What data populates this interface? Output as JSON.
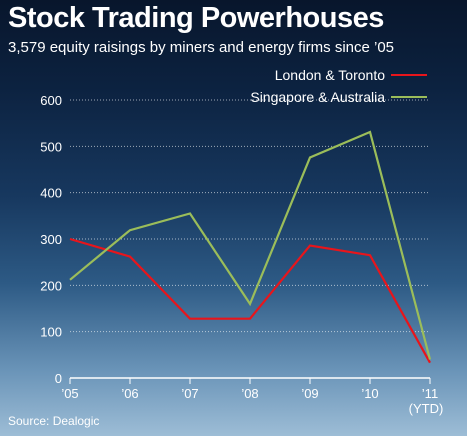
{
  "title": "Stock Trading Powerhouses",
  "subtitle": "3,579 equity raisings by miners and energy firms since ’05",
  "source": "Source: Dealogic",
  "colors": {
    "london_toronto": "#e8151b",
    "singapore_australia": "#9bbd5a"
  },
  "chart_data": {
    "type": "line",
    "title": "Stock Trading Powerhouses",
    "subtitle": "3,579 equity raisings by miners and energy firms since ’05",
    "categories": [
      "’05",
      "’06",
      "’07",
      "’08",
      "’09",
      "’10",
      "’11"
    ],
    "category_sublabels": [
      "",
      "",
      "",
      "",
      "",
      "",
      "(YTD)"
    ],
    "series": [
      {
        "name": "London & Toronto",
        "color": "#e8151b",
        "values": [
          300,
          262,
          128,
          128,
          286,
          265,
          33
        ]
      },
      {
        "name": "Singapore & Australia",
        "color": "#9bbd5a",
        "values": [
          212,
          319,
          355,
          160,
          476,
          531,
          40
        ]
      }
    ],
    "ylim": [
      0,
      600
    ],
    "yticks": [
      0,
      100,
      200,
      300,
      400,
      500,
      600
    ],
    "grid": true,
    "legend_position": "top-right",
    "xlabel": "",
    "ylabel": ""
  }
}
